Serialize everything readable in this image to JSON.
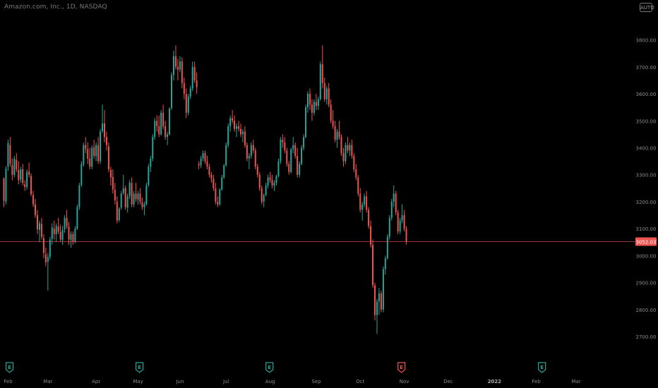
{
  "header": {
    "title": "Amazon.com, Inc., 1D, NASDAQ",
    "scale_badge": "AUTO"
  },
  "colors": {
    "background": "#000000",
    "up": "#26a69a",
    "down": "#ef5350",
    "price_line": "#ef5350",
    "axis_text": "#8b8b8b"
  },
  "chart_data": {
    "type": "candlestick",
    "title": "Amazon.com, Inc., 1D, NASDAQ",
    "ylim": [
      2640,
      3880
    ],
    "y_ticks": [
      {
        "value": 3800,
        "label": "3800.00"
      },
      {
        "value": 3700,
        "label": "3700.00"
      },
      {
        "value": 3600,
        "label": "3600.00"
      },
      {
        "value": 3500,
        "label": "3500.00"
      },
      {
        "value": 3400,
        "label": "3400.00"
      },
      {
        "value": 3300,
        "label": "3300.00"
      },
      {
        "value": 3200,
        "label": "3200.00"
      },
      {
        "value": 3100,
        "label": "3100.00"
      },
      {
        "value": 3000,
        "label": "3000.00"
      },
      {
        "value": 2900,
        "label": "2900.00"
      },
      {
        "value": 2800,
        "label": "2800.00"
      },
      {
        "value": 2700,
        "label": "2700.00"
      }
    ],
    "x_ticks": [
      {
        "label": "Feb",
        "index": 0
      },
      {
        "label": "Mar",
        "index": 19
      },
      {
        "label": "Apr",
        "index": 42
      },
      {
        "label": "May",
        "index": 62
      },
      {
        "label": "Jun",
        "index": 82
      },
      {
        "label": "Jul",
        "index": 104
      },
      {
        "label": "Aug",
        "index": 125
      },
      {
        "label": "Sep",
        "index": 147
      },
      {
        "label": "Oct",
        "index": 168
      },
      {
        "label": "Nov",
        "index": 189
      },
      {
        "label": "Dec",
        "index": 210
      },
      {
        "label": "2022",
        "index": 232
      },
      {
        "label": "Feb",
        "index": 252
      },
      {
        "label": "Mar",
        "index": 271
      }
    ],
    "current_price": {
      "value": 3052.03,
      "label": "3052.03"
    },
    "events": [
      {
        "label": "E",
        "index": 0,
        "type": "earnings-past"
      },
      {
        "label": "E",
        "index": 62,
        "type": "earnings-past"
      },
      {
        "label": "E",
        "index": 124,
        "type": "earnings-past"
      },
      {
        "label": "E",
        "index": 187,
        "type": "earnings-current"
      },
      {
        "label": "E",
        "index": 254,
        "type": "earnings-past"
      }
    ],
    "grid": false,
    "candles": [
      [
        3286,
        3290,
        3180,
        3203
      ],
      [
        3200,
        3332,
        3190,
        3322
      ],
      [
        3330,
        3430,
        3315,
        3418
      ],
      [
        3410,
        3440,
        3330,
        3340
      ],
      [
        3335,
        3360,
        3280,
        3300
      ],
      [
        3300,
        3370,
        3290,
        3360
      ],
      [
        3355,
        3380,
        3310,
        3320
      ],
      [
        3318,
        3350,
        3265,
        3280
      ],
      [
        3282,
        3330,
        3270,
        3320
      ],
      [
        3320,
        3340,
        3260,
        3270
      ],
      [
        3265,
        3280,
        3240,
        3255
      ],
      [
        3255,
        3320,
        3245,
        3310
      ],
      [
        3312,
        3345,
        3290,
        3300
      ],
      [
        3295,
        3305,
        3220,
        3228
      ],
      [
        3225,
        3240,
        3180,
        3190
      ],
      [
        3190,
        3210,
        3140,
        3150
      ],
      [
        3150,
        3170,
        3080,
        3098
      ],
      [
        3095,
        3130,
        3050,
        3120
      ],
      [
        3118,
        3140,
        3060,
        3070
      ],
      [
        3065,
        3080,
        2990,
        3010
      ],
      [
        3005,
        3030,
        2960,
        2975
      ],
      [
        2978,
        3010,
        2870,
        2995
      ],
      [
        2995,
        3070,
        2985,
        3060
      ],
      [
        3062,
        3120,
        3040,
        3105
      ],
      [
        3100,
        3130,
        3060,
        3080
      ],
      [
        3080,
        3120,
        3050,
        3110
      ],
      [
        3108,
        3140,
        3080,
        3090
      ],
      [
        3088,
        3115,
        3050,
        3060
      ],
      [
        3058,
        3110,
        3040,
        3095
      ],
      [
        3098,
        3150,
        3085,
        3140
      ],
      [
        3140,
        3170,
        3100,
        3110
      ],
      [
        3108,
        3125,
        3040,
        3060
      ],
      [
        3058,
        3090,
        3030,
        3080
      ],
      [
        3080,
        3090,
        3040,
        3050
      ],
      [
        3052,
        3110,
        3045,
        3100
      ],
      [
        3100,
        3190,
        3095,
        3180
      ],
      [
        3180,
        3270,
        3170,
        3260
      ],
      [
        3262,
        3350,
        3255,
        3340
      ],
      [
        3338,
        3420,
        3330,
        3410
      ],
      [
        3410,
        3440,
        3380,
        3395
      ],
      [
        3395,
        3420,
        3340,
        3360
      ],
      [
        3360,
        3400,
        3320,
        3330
      ],
      [
        3330,
        3410,
        3320,
        3400
      ],
      [
        3402,
        3430,
        3360,
        3370
      ],
      [
        3368,
        3420,
        3350,
        3410
      ],
      [
        3410,
        3440,
        3340,
        3350
      ],
      [
        3350,
        3470,
        3340,
        3460
      ],
      [
        3462,
        3560,
        3455,
        3490
      ],
      [
        3490,
        3540,
        3420,
        3440
      ],
      [
        3440,
        3460,
        3390,
        3410
      ],
      [
        3405,
        3420,
        3310,
        3320
      ],
      [
        3318,
        3330,
        3260,
        3290
      ],
      [
        3292,
        3320,
        3230,
        3245
      ],
      [
        3245,
        3270,
        3190,
        3205
      ],
      [
        3200,
        3220,
        3120,
        3130
      ],
      [
        3132,
        3180,
        3125,
        3175
      ],
      [
        3178,
        3240,
        3170,
        3230
      ],
      [
        3232,
        3300,
        3225,
        3250
      ],
      [
        3250,
        3260,
        3170,
        3180
      ],
      [
        3178,
        3230,
        3160,
        3220
      ],
      [
        3222,
        3280,
        3210,
        3270
      ],
      [
        3270,
        3290,
        3180,
        3190
      ],
      [
        3190,
        3240,
        3180,
        3230
      ],
      [
        3230,
        3270,
        3200,
        3210
      ],
      [
        3208,
        3240,
        3190,
        3230
      ],
      [
        3230,
        3250,
        3190,
        3200
      ],
      [
        3198,
        3215,
        3170,
        3180
      ],
      [
        3180,
        3200,
        3150,
        3190
      ],
      [
        3190,
        3270,
        3185,
        3260
      ],
      [
        3262,
        3340,
        3255,
        3330
      ],
      [
        3330,
        3370,
        3310,
        3360
      ],
      [
        3360,
        3450,
        3350,
        3440
      ],
      [
        3440,
        3510,
        3430,
        3500
      ],
      [
        3500,
        3520,
        3460,
        3480
      ],
      [
        3480,
        3520,
        3440,
        3450
      ],
      [
        3450,
        3540,
        3445,
        3530
      ],
      [
        3530,
        3560,
        3470,
        3480
      ],
      [
        3480,
        3500,
        3430,
        3440
      ],
      [
        3440,
        3460,
        3410,
        3450
      ],
      [
        3450,
        3550,
        3445,
        3545
      ],
      [
        3548,
        3680,
        3540,
        3670
      ],
      [
        3670,
        3760,
        3650,
        3740
      ],
      [
        3740,
        3780,
        3690,
        3700
      ],
      [
        3700,
        3730,
        3650,
        3690
      ],
      [
        3690,
        3740,
        3680,
        3720
      ],
      [
        3720,
        3735,
        3620,
        3640
      ],
      [
        3640,
        3660,
        3580,
        3600
      ],
      [
        3600,
        3620,
        3510,
        3530
      ],
      [
        3530,
        3600,
        3520,
        3590
      ],
      [
        3590,
        3630,
        3580,
        3620
      ],
      [
        3620,
        3720,
        3610,
        3700
      ],
      [
        3700,
        3720,
        3640,
        3650
      ],
      [
        3650,
        3680,
        3600,
        3625
      ],
      [
        3340,
        3350,
        3320,
        3335
      ],
      [
        3335,
        3370,
        3325,
        3360
      ],
      [
        3360,
        3390,
        3350,
        3380
      ],
      [
        3380,
        3390,
        3340,
        3350
      ],
      [
        3350,
        3370,
        3320,
        3330
      ],
      [
        3330,
        3340,
        3290,
        3300
      ],
      [
        3300,
        3310,
        3270,
        3285
      ],
      [
        3285,
        3300,
        3240,
        3250
      ],
      [
        3250,
        3270,
        3190,
        3200
      ],
      [
        3200,
        3220,
        3180,
        3190
      ],
      [
        3190,
        3250,
        3185,
        3245
      ],
      [
        3245,
        3300,
        3240,
        3290
      ],
      [
        3290,
        3340,
        3285,
        3335
      ],
      [
        3335,
        3420,
        3330,
        3410
      ],
      [
        3410,
        3490,
        3400,
        3480
      ],
      [
        3480,
        3520,
        3460,
        3510
      ],
      [
        3510,
        3540,
        3490,
        3500
      ],
      [
        3500,
        3520,
        3460,
        3470
      ],
      [
        3470,
        3490,
        3440,
        3480
      ],
      [
        3480,
        3500,
        3460,
        3470
      ],
      [
        3470,
        3490,
        3440,
        3450
      ],
      [
        3450,
        3470,
        3420,
        3460
      ],
      [
        3460,
        3480,
        3400,
        3410
      ],
      [
        3410,
        3420,
        3350,
        3360
      ],
      [
        3360,
        3380,
        3320,
        3370
      ],
      [
        3370,
        3420,
        3360,
        3410
      ],
      [
        3410,
        3430,
        3380,
        3390
      ],
      [
        3390,
        3400,
        3320,
        3330
      ],
      [
        3330,
        3340,
        3290,
        3300
      ],
      [
        3300,
        3310,
        3240,
        3250
      ],
      [
        3250,
        3260,
        3190,
        3200
      ],
      [
        3200,
        3230,
        3180,
        3225
      ],
      [
        3225,
        3270,
        3220,
        3260
      ],
      [
        3260,
        3300,
        3250,
        3290
      ],
      [
        3290,
        3310,
        3270,
        3280
      ],
      [
        3280,
        3300,
        3250,
        3260
      ],
      [
        3260,
        3280,
        3240,
        3270
      ],
      [
        3270,
        3300,
        3260,
        3295
      ],
      [
        3295,
        3360,
        3290,
        3350
      ],
      [
        3350,
        3440,
        3340,
        3430
      ],
      [
        3430,
        3450,
        3400,
        3420
      ],
      [
        3420,
        3440,
        3380,
        3390
      ],
      [
        3390,
        3400,
        3330,
        3340
      ],
      [
        3340,
        3350,
        3300,
        3310
      ],
      [
        3310,
        3400,
        3305,
        3395
      ],
      [
        3395,
        3440,
        3380,
        3410
      ],
      [
        3410,
        3420,
        3360,
        3370
      ],
      [
        3370,
        3400,
        3290,
        3300
      ],
      [
        3300,
        3350,
        3290,
        3340
      ],
      [
        3340,
        3410,
        3335,
        3400
      ],
      [
        3400,
        3450,
        3390,
        3440
      ],
      [
        3440,
        3560,
        3435,
        3550
      ],
      [
        3550,
        3610,
        3530,
        3600
      ],
      [
        3600,
        3620,
        3540,
        3560
      ],
      [
        3560,
        3580,
        3500,
        3530
      ],
      [
        3530,
        3580,
        3520,
        3570
      ],
      [
        3570,
        3600,
        3540,
        3555
      ],
      [
        3555,
        3590,
        3540,
        3580
      ],
      [
        3580,
        3720,
        3575,
        3710
      ],
      [
        3710,
        3780,
        3620,
        3640
      ],
      [
        3640,
        3660,
        3570,
        3580
      ],
      [
        3580,
        3630,
        3560,
        3620
      ],
      [
        3620,
        3640,
        3550,
        3560
      ],
      [
        3560,
        3580,
        3490,
        3500
      ],
      [
        3500,
        3540,
        3470,
        3480
      ],
      [
        3480,
        3500,
        3420,
        3430
      ],
      [
        3430,
        3470,
        3400,
        3460
      ],
      [
        3460,
        3500,
        3430,
        3440
      ],
      [
        3440,
        3450,
        3370,
        3380
      ],
      [
        3380,
        3400,
        3330,
        3350
      ],
      [
        3350,
        3420,
        3340,
        3410
      ],
      [
        3410,
        3440,
        3380,
        3390
      ],
      [
        3390,
        3420,
        3370,
        3410
      ],
      [
        3410,
        3430,
        3360,
        3370
      ],
      [
        3370,
        3380,
        3310,
        3320
      ],
      [
        3320,
        3340,
        3280,
        3290
      ],
      [
        3290,
        3300,
        3220,
        3230
      ],
      [
        3230,
        3250,
        3160,
        3170
      ],
      [
        3170,
        3200,
        3130,
        3190
      ],
      [
        3190,
        3230,
        3180,
        3220
      ],
      [
        3220,
        3240,
        3160,
        3170
      ],
      [
        3170,
        3180,
        3100,
        3110
      ],
      [
        3110,
        3130,
        3030,
        3040
      ],
      [
        3040,
        3060,
        2880,
        2890
      ],
      [
        2890,
        2900,
        2760,
        2780
      ],
      [
        2780,
        2840,
        2710,
        2830
      ],
      [
        2830,
        2880,
        2780,
        2860
      ],
      [
        2860,
        2870,
        2790,
        2800
      ],
      [
        2800,
        2960,
        2790,
        2950
      ],
      [
        2950,
        3000,
        2930,
        2990
      ],
      [
        2990,
        3080,
        2985,
        3070
      ],
      [
        3070,
        3150,
        3060,
        3140
      ],
      [
        3140,
        3210,
        3130,
        3200
      ],
      [
        3200,
        3260,
        3180,
        3230
      ],
      [
        3230,
        3240,
        3150,
        3160
      ],
      [
        3160,
        3170,
        3080,
        3090
      ],
      [
        3090,
        3140,
        3080,
        3130
      ],
      [
        3130,
        3190,
        3120,
        3150
      ],
      [
        3150,
        3170,
        3090,
        3100
      ],
      [
        3100,
        3110,
        3040,
        3052
      ]
    ]
  }
}
